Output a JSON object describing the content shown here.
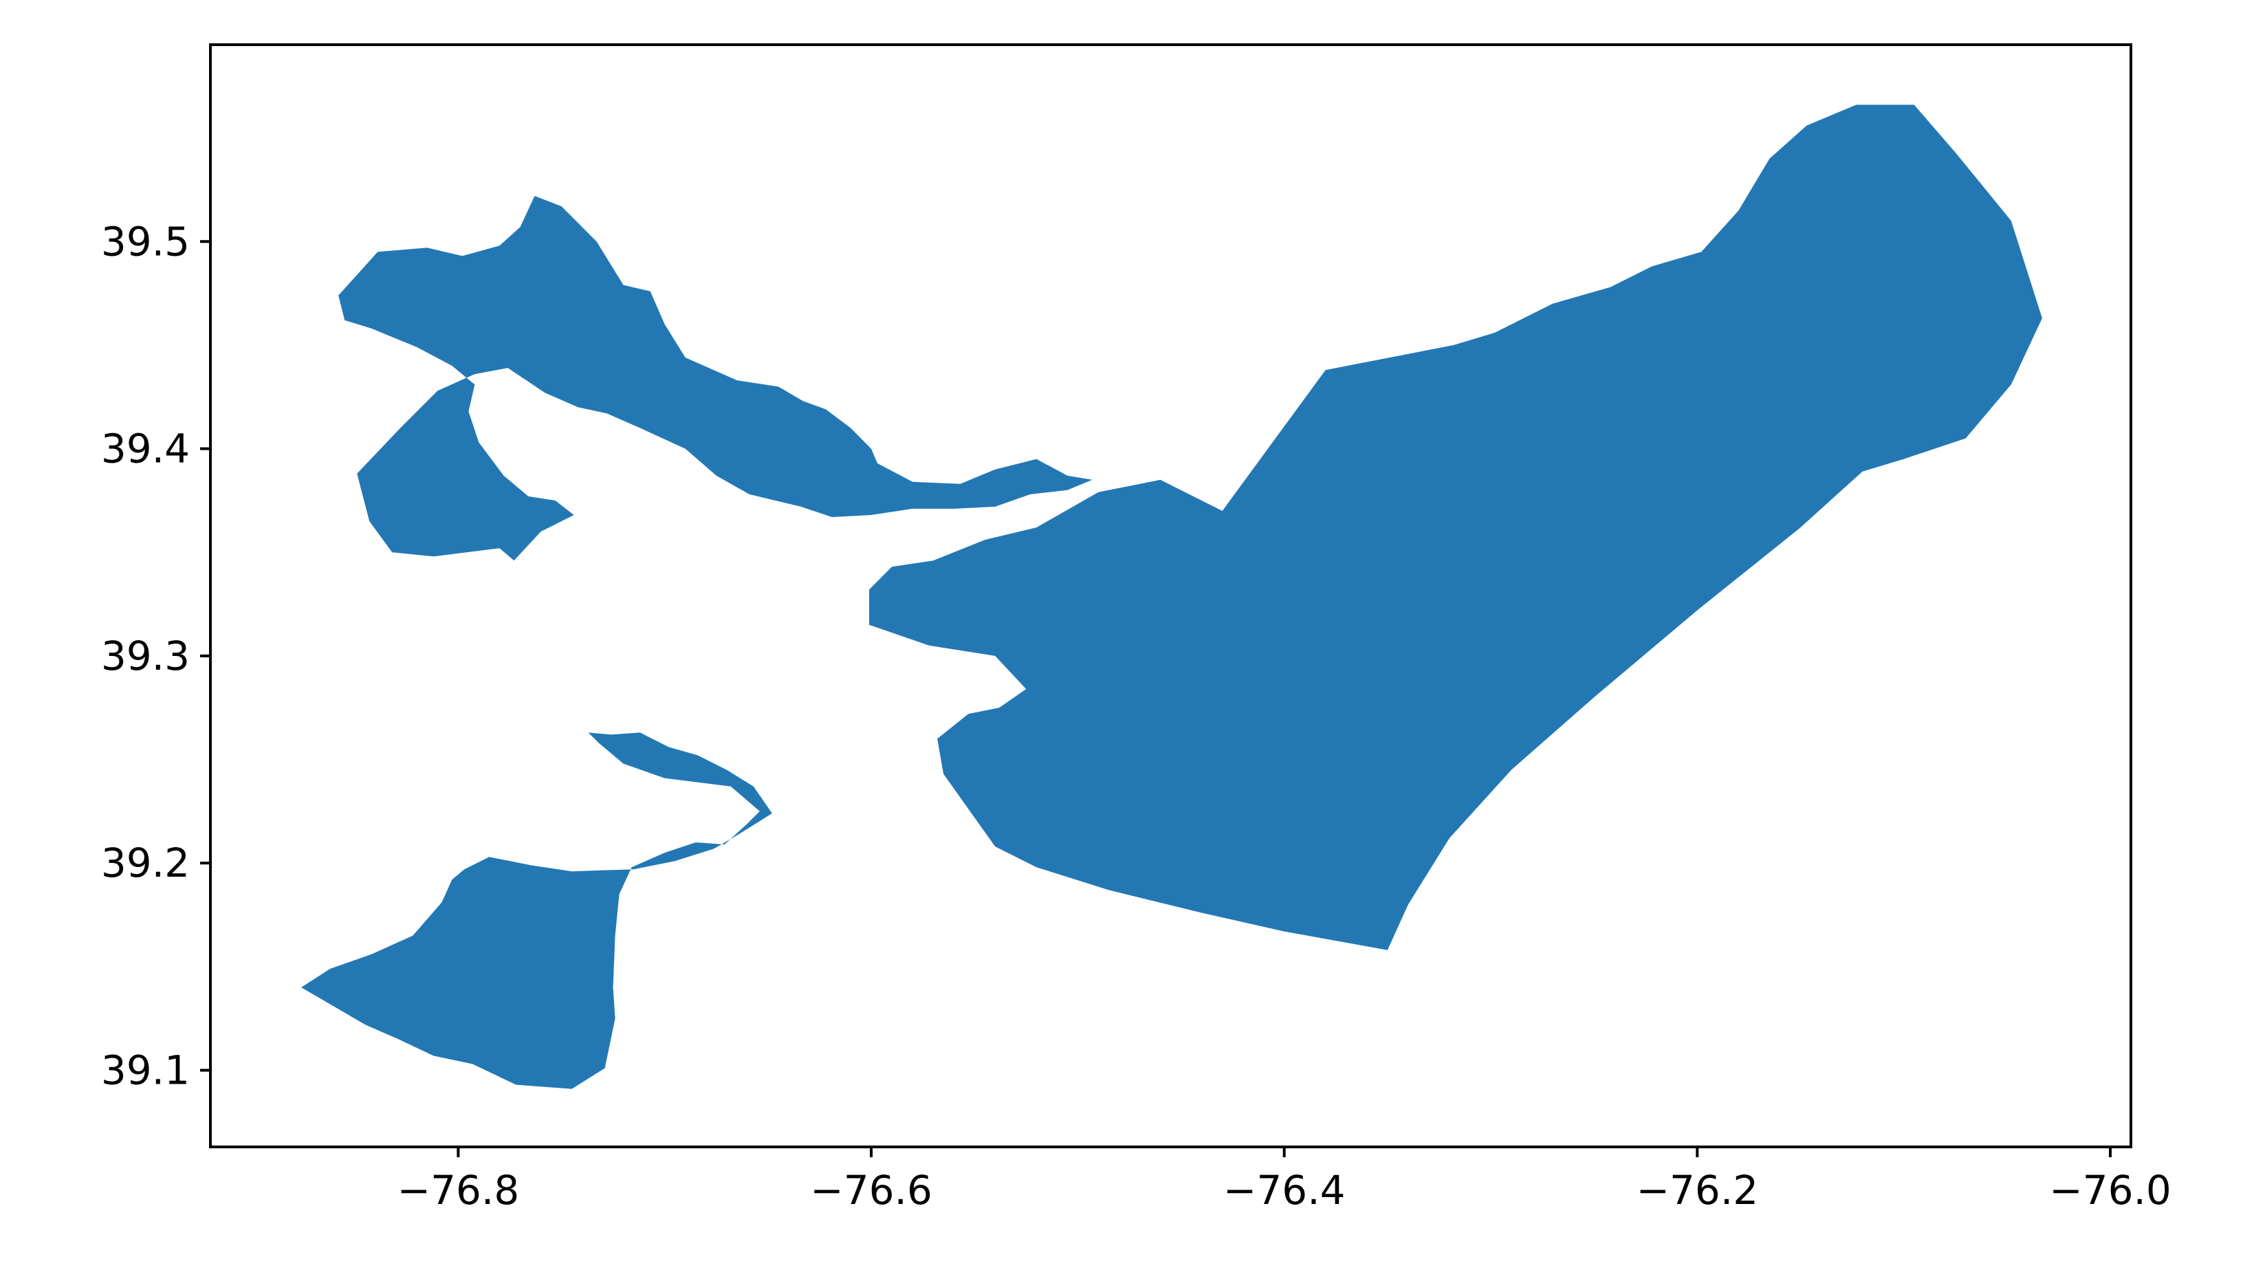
{
  "chart_data": {
    "type": "map",
    "geometry": "polygon",
    "xlim": [
      -76.92,
      -75.99
    ],
    "ylim": [
      39.063,
      39.595
    ],
    "x_ticks": [
      {
        "value": -76.8,
        "label": "−76.8"
      },
      {
        "value": -76.6,
        "label": "−76.6"
      },
      {
        "value": -76.4,
        "label": "−76.4"
      },
      {
        "value": -76.2,
        "label": "−76.2"
      },
      {
        "value": -76.0,
        "label": "−76.0"
      }
    ],
    "y_ticks": [
      {
        "value": 39.1,
        "label": "39.1"
      },
      {
        "value": 39.2,
        "label": "39.2"
      },
      {
        "value": 39.3,
        "label": "39.3"
      },
      {
        "value": 39.4,
        "label": "39.4"
      },
      {
        "value": 39.5,
        "label": "39.5"
      }
    ],
    "fill_color": "#2378b4",
    "grid": false,
    "legend": "none",
    "regions": [
      {
        "points": [
          [
            -76.876,
            39.14
          ],
          [
            -76.845,
            39.122
          ],
          [
            -76.829,
            39.115
          ],
          [
            -76.812,
            39.107
          ],
          [
            -76.793,
            39.103
          ],
          [
            -76.772,
            39.093
          ],
          [
            -76.745,
            39.091
          ],
          [
            -76.729,
            39.101
          ],
          [
            -76.724,
            39.125
          ],
          [
            -76.725,
            39.14
          ],
          [
            -76.724,
            39.165
          ],
          [
            -76.722,
            39.185
          ],
          [
            -76.716,
            39.198
          ],
          [
            -76.7,
            39.205
          ],
          [
            -76.685,
            39.21
          ],
          [
            -76.671,
            39.209
          ],
          [
            -76.66,
            39.219
          ],
          [
            -76.654,
            39.225
          ],
          [
            -76.668,
            39.237
          ],
          [
            -76.7,
            39.241
          ],
          [
            -76.72,
            39.248
          ],
          [
            -76.732,
            39.258
          ],
          [
            -76.735,
            39.261
          ],
          [
            -76.737,
            39.263
          ],
          [
            -76.726,
            39.262
          ],
          [
            -76.712,
            39.263
          ],
          [
            -76.698,
            39.256
          ],
          [
            -76.684,
            39.252
          ],
          [
            -76.67,
            39.245
          ],
          [
            -76.657,
            39.237
          ],
          [
            -76.648,
            39.224
          ],
          [
            -76.664,
            39.214
          ],
          [
            -76.676,
            39.207
          ],
          [
            -76.695,
            39.201
          ],
          [
            -76.715,
            39.197
          ],
          [
            -76.745,
            39.196
          ],
          [
            -76.765,
            39.199
          ],
          [
            -76.785,
            39.203
          ],
          [
            -76.797,
            39.197
          ],
          [
            -76.803,
            39.192
          ],
          [
            -76.808,
            39.181
          ],
          [
            -76.822,
            39.165
          ],
          [
            -76.842,
            39.156
          ],
          [
            -76.862,
            39.149
          ]
        ]
      },
      {
        "points": [
          [
            -76.849,
            39.388
          ],
          [
            -76.843,
            39.365
          ],
          [
            -76.832,
            39.35
          ],
          [
            -76.812,
            39.348
          ],
          [
            -76.78,
            39.352
          ],
          [
            -76.773,
            39.346
          ],
          [
            -76.76,
            39.36
          ],
          [
            -76.744,
            39.368
          ],
          [
            -76.753,
            39.375
          ],
          [
            -76.766,
            39.377
          ],
          [
            -76.778,
            39.387
          ],
          [
            -76.79,
            39.403
          ],
          [
            -76.795,
            39.418
          ],
          [
            -76.792,
            39.431
          ],
          [
            -76.803,
            39.44
          ],
          [
            -76.82,
            39.449
          ],
          [
            -76.842,
            39.458
          ],
          [
            -76.855,
            39.462
          ],
          [
            -76.858,
            39.474
          ],
          [
            -76.839,
            39.495
          ],
          [
            -76.815,
            39.497
          ],
          [
            -76.798,
            39.493
          ],
          [
            -76.78,
            39.498
          ],
          [
            -76.77,
            39.507
          ],
          [
            -76.763,
            39.522
          ],
          [
            -76.75,
            39.517
          ],
          [
            -76.733,
            39.5
          ],
          [
            -76.72,
            39.479
          ],
          [
            -76.707,
            39.476
          ],
          [
            -76.7,
            39.46
          ],
          [
            -76.69,
            39.444
          ],
          [
            -76.665,
            39.433
          ],
          [
            -76.645,
            39.43
          ],
          [
            -76.633,
            39.423
          ],
          [
            -76.622,
            39.419
          ],
          [
            -76.61,
            39.41
          ],
          [
            -76.6,
            39.4
          ],
          [
            -76.597,
            39.393
          ],
          [
            -76.58,
            39.384
          ],
          [
            -76.557,
            39.383
          ],
          [
            -76.54,
            39.39
          ],
          [
            -76.52,
            39.395
          ],
          [
            -76.505,
            39.387
          ],
          [
            -76.493,
            39.385
          ],
          [
            -76.505,
            39.38
          ],
          [
            -76.523,
            39.378
          ],
          [
            -76.54,
            39.372
          ],
          [
            -76.56,
            39.371
          ],
          [
            -76.58,
            39.371
          ],
          [
            -76.6,
            39.368
          ],
          [
            -76.619,
            39.367
          ],
          [
            -76.634,
            39.372
          ],
          [
            -76.659,
            39.378
          ],
          [
            -76.675,
            39.387
          ],
          [
            -76.69,
            39.4
          ],
          [
            -76.712,
            39.41
          ],
          [
            -76.728,
            39.417
          ],
          [
            -76.742,
            39.42
          ],
          [
            -76.758,
            39.427
          ],
          [
            -76.776,
            39.439
          ],
          [
            -76.792,
            39.436
          ],
          [
            -76.81,
            39.428
          ],
          [
            -76.828,
            39.41
          ]
        ]
      },
      {
        "points": [
          [
            -76.565,
            39.243
          ],
          [
            -76.54,
            39.208
          ],
          [
            -76.52,
            39.198
          ],
          [
            -76.485,
            39.187
          ],
          [
            -76.44,
            39.176
          ],
          [
            -76.4,
            39.167
          ],
          [
            -76.35,
            39.158
          ],
          [
            -76.34,
            39.18
          ],
          [
            -76.32,
            39.212
          ],
          [
            -76.29,
            39.245
          ],
          [
            -76.25,
            39.28
          ],
          [
            -76.2,
            39.322
          ],
          [
            -76.15,
            39.362
          ],
          [
            -76.12,
            39.389
          ],
          [
            -76.1,
            39.395
          ],
          [
            -76.07,
            39.405
          ],
          [
            -76.048,
            39.431
          ],
          [
            -76.033,
            39.463
          ],
          [
            -76.048,
            39.51
          ],
          [
            -76.075,
            39.543
          ],
          [
            -76.095,
            39.566
          ],
          [
            -76.123,
            39.566
          ],
          [
            -76.147,
            39.556
          ],
          [
            -76.165,
            39.54
          ],
          [
            -76.18,
            39.515
          ],
          [
            -76.198,
            39.495
          ],
          [
            -76.222,
            39.488
          ],
          [
            -76.242,
            39.478
          ],
          [
            -76.27,
            39.47
          ],
          [
            -76.298,
            39.456
          ],
          [
            -76.318,
            39.45
          ],
          [
            -76.38,
            39.438
          ],
          [
            -76.43,
            39.37
          ],
          [
            -76.46,
            39.385
          ],
          [
            -76.49,
            39.379
          ],
          [
            -76.52,
            39.362
          ],
          [
            -76.545,
            39.356
          ],
          [
            -76.57,
            39.346
          ],
          [
            -76.59,
            39.343
          ],
          [
            -76.601,
            39.332
          ],
          [
            -76.601,
            39.315
          ],
          [
            -76.572,
            39.305
          ],
          [
            -76.54,
            39.3
          ],
          [
            -76.525,
            39.284
          ],
          [
            -76.538,
            39.275
          ],
          [
            -76.553,
            39.272
          ],
          [
            -76.568,
            39.26
          ]
        ]
      }
    ]
  }
}
